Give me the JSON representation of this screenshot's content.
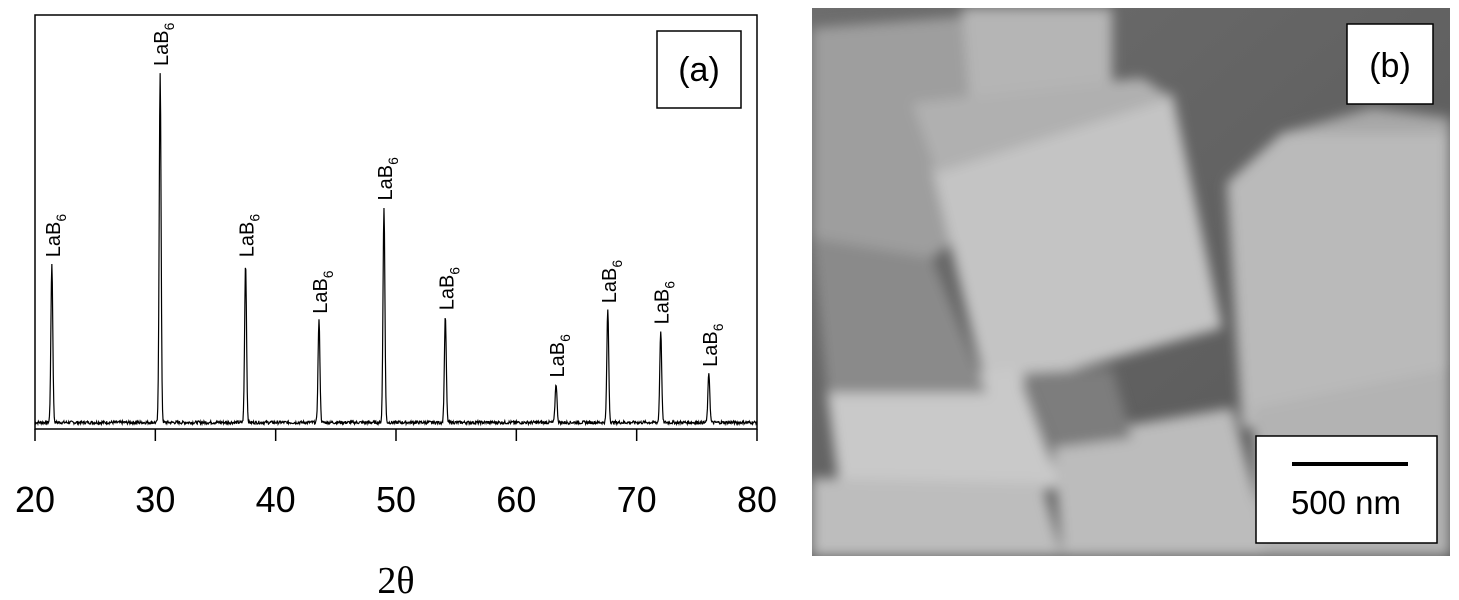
{
  "chart_data": [
    {
      "type": "line",
      "panel_label": "(a)",
      "xlabel": "2θ",
      "ylabel": "",
      "xlim": [
        20,
        80
      ],
      "ylim": [
        0,
        100
      ],
      "x_ticks": [
        20,
        30,
        40,
        50,
        60,
        70,
        80
      ],
      "grid": false,
      "background_level": 1,
      "peaks": [
        {
          "x": 21.4,
          "y": 45,
          "label": "LaB",
          "sub": "6"
        },
        {
          "x": 30.4,
          "y": 99,
          "label": "LaB",
          "sub": "6"
        },
        {
          "x": 37.5,
          "y": 45,
          "label": "LaB",
          "sub": "6"
        },
        {
          "x": 43.6,
          "y": 29,
          "label": "LaB",
          "sub": "6"
        },
        {
          "x": 49.0,
          "y": 61,
          "label": "LaB",
          "sub": "6"
        },
        {
          "x": 54.1,
          "y": 30,
          "label": "LaB",
          "sub": "6"
        },
        {
          "x": 63.3,
          "y": 11,
          "label": "LaB",
          "sub": "6"
        },
        {
          "x": 67.6,
          "y": 32,
          "label": "LaB",
          "sub": "6"
        },
        {
          "x": 72.0,
          "y": 26,
          "label": "LaB",
          "sub": "6"
        },
        {
          "x": 76.0,
          "y": 14,
          "label": "LaB",
          "sub": "6"
        }
      ]
    }
  ],
  "image_panel": {
    "panel_label": "(b)",
    "scale_bar_label": "500 nm",
    "colors": {
      "background": "#5e5e5e",
      "crystal_light": "#c8c8c8",
      "crystal_mid": "#a9a9a9"
    }
  }
}
